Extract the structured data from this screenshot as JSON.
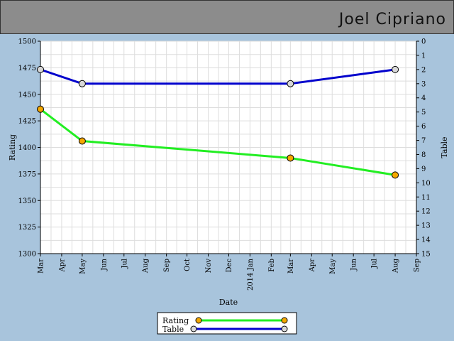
{
  "header": {
    "name": "Joel Cipriano"
  },
  "colors": {
    "page_bg": "#a8c4dc",
    "header_bg": "#8c8c8c",
    "plot_bg": "#ffffff",
    "grid": "#dddddd",
    "rating_line": "#22ee22",
    "rating_marker": "#f5a800",
    "table_line": "#0000cc",
    "table_marker": "#d8d8d8"
  },
  "chart_data": {
    "type": "line",
    "xlabel": "Date",
    "ylabel_left": "Rating",
    "ylabel_right": "Table",
    "ylim_left": [
      1300,
      1500
    ],
    "ylim_right": [
      15,
      0
    ],
    "yticks_left": [
      "1300",
      "1325",
      "1350",
      "1375",
      "1400",
      "1425",
      "1450",
      "1475",
      "1500"
    ],
    "yticks_right": [
      "0",
      "1",
      "2",
      "3",
      "4",
      "5",
      "6",
      "7",
      "8",
      "9",
      "10",
      "11",
      "12",
      "13",
      "14",
      "15"
    ],
    "xticks": [
      "Mar",
      "Apr",
      "May",
      "Jun",
      "Jul",
      "Aug",
      "Sep",
      "Oct",
      "Nov",
      "Dec",
      "2014 Jan",
      "Feb",
      "Mar",
      "Apr",
      "May",
      "Jun",
      "Jul",
      "Aug",
      "Sep"
    ],
    "grid": true,
    "legend_position": "bottom-center",
    "series": [
      {
        "name": "Rating",
        "axis": "left",
        "x": [
          "2013-03-01",
          "2013-05-01",
          "2014-03-01",
          "2014-08-01"
        ],
        "values": [
          1436,
          1406,
          1390,
          1374
        ]
      },
      {
        "name": "Table",
        "axis": "right",
        "x": [
          "2013-03-01",
          "2013-05-01",
          "2014-03-01",
          "2014-08-01"
        ],
        "values": [
          2,
          3,
          3,
          2
        ]
      }
    ]
  }
}
